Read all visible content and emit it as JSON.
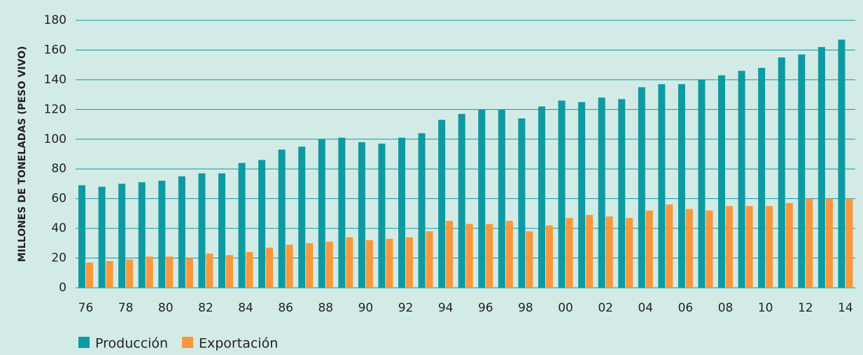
{
  "chart_data": {
    "type": "bar",
    "y_label": "MILLONES DE TONELADAS (PESO VIVO)",
    "categories": [
      "76",
      null,
      "78",
      null,
      "80",
      null,
      "82",
      null,
      "84",
      null,
      "86",
      null,
      "88",
      null,
      "90",
      null,
      "92",
      null,
      "94",
      null,
      "96",
      null,
      "98",
      null,
      "00",
      null,
      "02",
      null,
      "04",
      null,
      "06",
      null,
      "08",
      null,
      "10",
      null,
      "12",
      null,
      "14"
    ],
    "series": [
      {
        "name": "Producción",
        "color": "#0e9aa3",
        "values": [
          69,
          68,
          70,
          71,
          72,
          75,
          77,
          77,
          84,
          86,
          93,
          95,
          100,
          101,
          98,
          97,
          101,
          104,
          113,
          117,
          120,
          120,
          114,
          122,
          126,
          125,
          128,
          127,
          135,
          137,
          137,
          140,
          143,
          146,
          148,
          155,
          157,
          162,
          167
        ]
      },
      {
        "name": "Exportación",
        "color": "#f7983e",
        "values": [
          17,
          18,
          19,
          21,
          21,
          20,
          23,
          22,
          24,
          27,
          29,
          30,
          31,
          34,
          32,
          33,
          34,
          38,
          45,
          43,
          43,
          45,
          38,
          42,
          47,
          49,
          48,
          47,
          52,
          56,
          53,
          52,
          55,
          55,
          55,
          57,
          60,
          60,
          60
        ]
      }
    ],
    "ylim": [
      0,
      180
    ],
    "yticks": [
      0,
      20,
      40,
      60,
      80,
      100,
      120,
      140,
      160,
      180
    ],
    "grid": true,
    "legend": "bottom-left"
  }
}
